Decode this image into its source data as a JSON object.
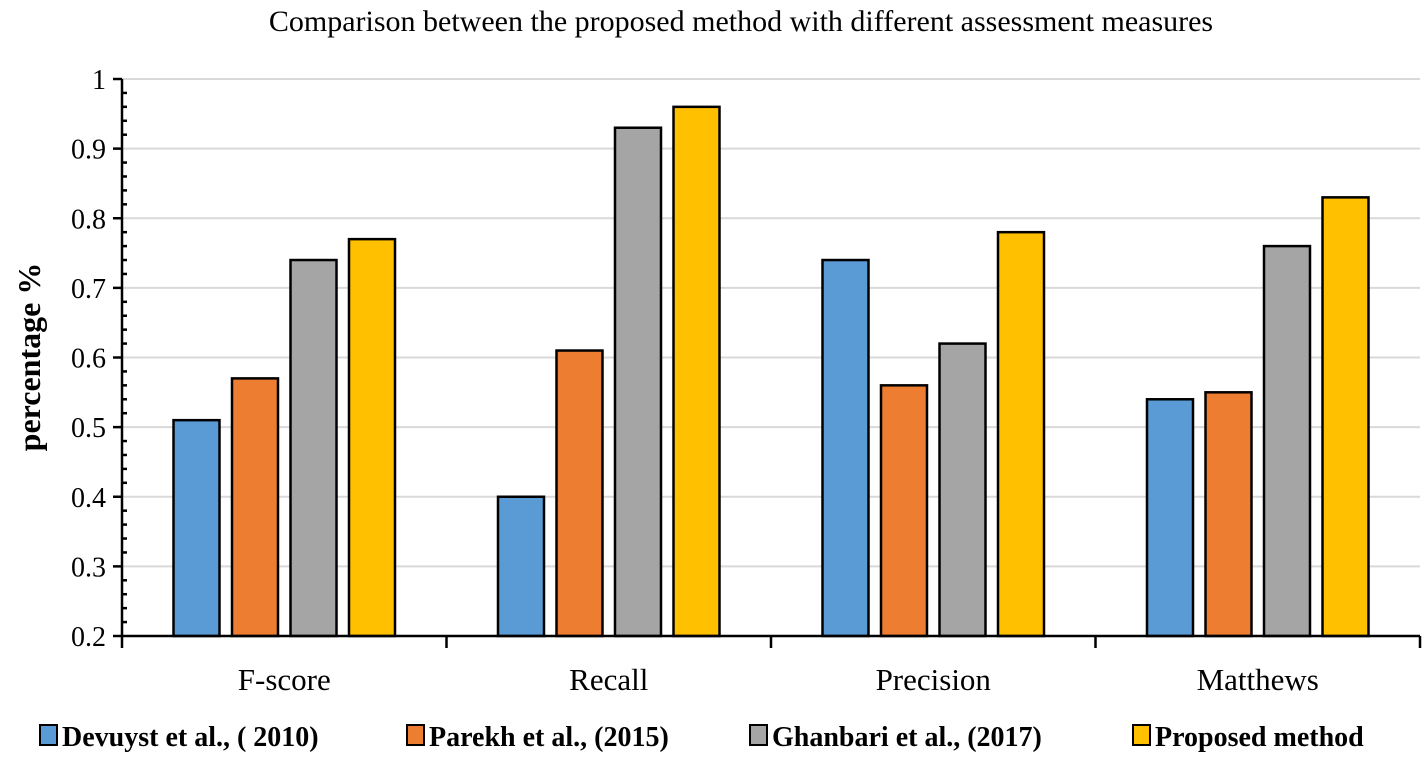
{
  "chart_data": {
    "type": "bar",
    "title": "Comparison between the proposed method with different assessment measures",
    "xlabel": "",
    "ylabel": "percentage   %",
    "ylim": [
      0.2,
      1.0
    ],
    "yticks": [
      "0.2",
      "0.3",
      "0.4",
      "0.5",
      "0.6",
      "0.7",
      "0.8",
      "0.9",
      "1"
    ],
    "grid": true,
    "legend_position": "bottom",
    "categories": [
      "F-score",
      "Recall",
      "Precision",
      "Matthews"
    ],
    "series": [
      {
        "name": "Devuyst et al., ( 2010)",
        "color": "#5b9bd5",
        "values": [
          0.51,
          0.4,
          0.74,
          0.54
        ]
      },
      {
        "name": "Parekh et al., (2015)",
        "color": "#ed7d31",
        "values": [
          0.57,
          0.61,
          0.56,
          0.55
        ]
      },
      {
        "name": "Ghanbari et al., (2017)",
        "color": "#a5a5a5",
        "values": [
          0.74,
          0.93,
          0.62,
          0.76
        ]
      },
      {
        "name": "Proposed method",
        "color": "#ffc000",
        "values": [
          0.77,
          0.96,
          0.78,
          0.83
        ]
      }
    ]
  }
}
